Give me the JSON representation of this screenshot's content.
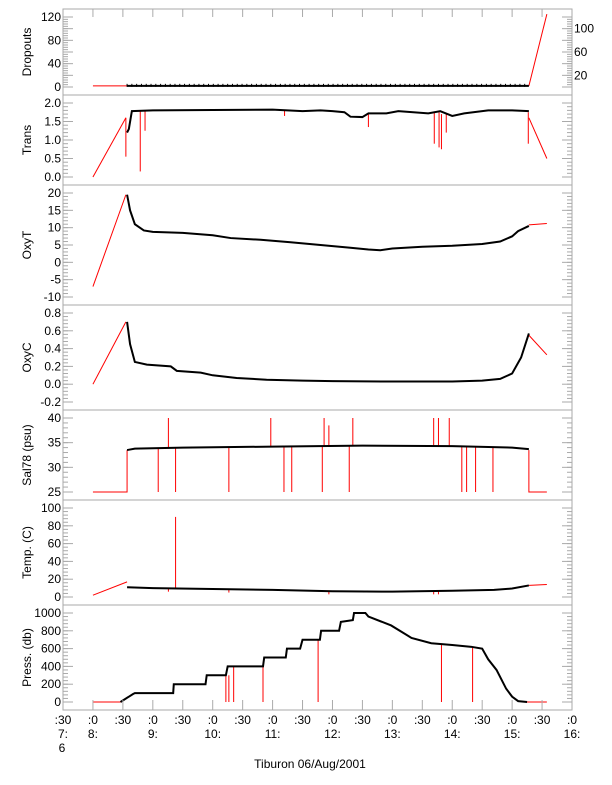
{
  "chart_data": {
    "type": "line",
    "xlabel": "Tiburon 06/Aug/2001",
    "xlim": [
      7.5,
      16.0
    ],
    "x_ticks": [
      {
        "t": 7.5,
        "label": ":30",
        "hour": "7:",
        "day": "6"
      },
      {
        "t": 8.0,
        "label": ":0",
        "hour": "8:"
      },
      {
        "t": 8.5,
        "label": ":30"
      },
      {
        "t": 9.0,
        "label": ":0",
        "hour": "9:"
      },
      {
        "t": 9.5,
        "label": ":30"
      },
      {
        "t": 10.0,
        "label": ":0",
        "hour": "10:"
      },
      {
        "t": 10.5,
        "label": ":30"
      },
      {
        "t": 11.0,
        "label": ":0",
        "hour": "11:"
      },
      {
        "t": 11.5,
        "label": ":30"
      },
      {
        "t": 12.0,
        "label": ":0",
        "hour": "12:"
      },
      {
        "t": 12.5,
        "label": ":30"
      },
      {
        "t": 13.0,
        "label": ":0",
        "hour": "13:"
      },
      {
        "t": 13.5,
        "label": ":30"
      },
      {
        "t": 14.0,
        "label": ":0",
        "hour": "14:"
      },
      {
        "t": 14.5,
        "label": ":30"
      },
      {
        "t": 15.0,
        "label": ":0",
        "hour": "15:"
      },
      {
        "t": 15.5,
        "label": ":30"
      },
      {
        "t": 16.0,
        "label": ":0",
        "hour": "16:"
      }
    ],
    "colors": {
      "data": "#000000",
      "flagged": "#ff0000",
      "axis": "#aaaaaa"
    },
    "panels": [
      {
        "ylabel": "Dropouts",
        "ylim": [
          0,
          120
        ],
        "ticks": [
          0,
          20,
          40,
          60,
          80,
          100,
          120
        ],
        "tick_labels": [
          "0",
          "20",
          "40",
          "60",
          "80",
          "100",
          "120"
        ],
        "series": [
          {
            "name": "data",
            "points": [
              [
                8.57,
                2
              ],
              [
                15.28,
                2
              ]
            ]
          }
        ],
        "flagged_lines": [
          [
            [
              8.0,
              2
            ],
            [
              8.57,
              2
            ]
          ],
          [
            [
              15.28,
              2
            ],
            [
              15.58,
              125
            ]
          ]
        ],
        "spikes": []
      },
      {
        "ylabel": "Trans",
        "ylim": [
          0,
          2
        ],
        "ticks": [
          0,
          0.5,
          1,
          1.5,
          2
        ],
        "tick_labels": [
          "0.0",
          "0.5",
          "1.0",
          "1.5",
          "2.0"
        ],
        "series": [
          {
            "name": "data",
            "points": [
              [
                8.57,
                1.2
              ],
              [
                8.6,
                1.3
              ],
              [
                8.65,
                1.78
              ],
              [
                9.0,
                1.8
              ],
              [
                10.0,
                1.81
              ],
              [
                11.0,
                1.82
              ],
              [
                11.5,
                1.78
              ],
              [
                11.8,
                1.8
              ],
              [
                12.0,
                1.78
              ],
              [
                12.2,
                1.75
              ],
              [
                12.3,
                1.63
              ],
              [
                12.5,
                1.62
              ],
              [
                12.6,
                1.72
              ],
              [
                12.9,
                1.72
              ],
              [
                13.1,
                1.78
              ],
              [
                13.6,
                1.72
              ],
              [
                13.8,
                1.78
              ],
              [
                14.0,
                1.65
              ],
              [
                14.2,
                1.72
              ],
              [
                14.6,
                1.8
              ],
              [
                15.0,
                1.8
              ],
              [
                15.28,
                1.78
              ]
            ]
          }
        ],
        "flagged_lines": [
          [
            [
              8.0,
              0
            ],
            [
              8.55,
              1.6
            ]
          ],
          [
            [
              15.28,
              1.6
            ],
            [
              15.58,
              0.5
            ]
          ]
        ],
        "spikes": [
          [
            8.55,
            1.6,
            0.55
          ],
          [
            8.79,
            1.8,
            0.15
          ],
          [
            8.87,
            1.8,
            1.25
          ],
          [
            11.2,
            1.8,
            1.65
          ],
          [
            12.6,
            1.7,
            1.35
          ],
          [
            13.7,
            1.75,
            0.9
          ],
          [
            13.78,
            1.75,
            0.8
          ],
          [
            13.82,
            1.7,
            0.75
          ],
          [
            13.9,
            1.7,
            1.2
          ],
          [
            15.27,
            1.75,
            0.9
          ]
        ]
      },
      {
        "ylabel": "OxyT",
        "ylim": [
          -10,
          20
        ],
        "ticks": [
          -10,
          -5,
          0,
          5,
          10,
          15,
          20
        ],
        "tick_labels": [
          "-10",
          "-5",
          "0",
          "5",
          "10",
          "15",
          "20"
        ],
        "series": [
          {
            "name": "data",
            "points": [
              [
                8.57,
                19.5
              ],
              [
                8.62,
                15
              ],
              [
                8.7,
                11
              ],
              [
                8.85,
                9.2
              ],
              [
                9.0,
                8.8
              ],
              [
                9.5,
                8.5
              ],
              [
                10.0,
                7.8
              ],
              [
                10.3,
                7
              ],
              [
                10.8,
                6.5
              ],
              [
                11.3,
                5.8
              ],
              [
                11.8,
                5
              ],
              [
                12.3,
                4.2
              ],
              [
                12.6,
                3.7
              ],
              [
                12.8,
                3.5
              ],
              [
                13.0,
                4
              ],
              [
                13.5,
                4.5
              ],
              [
                14.0,
                4.8
              ],
              [
                14.5,
                5.3
              ],
              [
                14.8,
                6
              ],
              [
                15.0,
                7.5
              ],
              [
                15.1,
                9
              ],
              [
                15.28,
                10.5
              ]
            ]
          }
        ],
        "flagged_lines": [
          [
            [
              8.0,
              -7
            ],
            [
              8.55,
              19.5
            ]
          ],
          [
            [
              15.28,
              10.8
            ],
            [
              15.58,
              11.2
            ]
          ]
        ],
        "spikes": []
      },
      {
        "ylabel": "OxyC",
        "ylim": [
          -0.2,
          0.8
        ],
        "ticks": [
          -0.2,
          0,
          0.2,
          0.4,
          0.6,
          0.8
        ],
        "tick_labels": [
          "-0.2",
          "0.0",
          "0.2",
          "0.4",
          "0.6",
          "0.8"
        ],
        "series": [
          {
            "name": "data",
            "points": [
              [
                8.57,
                0.7
              ],
              [
                8.62,
                0.45
              ],
              [
                8.7,
                0.25
              ],
              [
                8.9,
                0.22
              ],
              [
                9.3,
                0.2
              ],
              [
                9.4,
                0.15
              ],
              [
                9.8,
                0.13
              ],
              [
                10.0,
                0.1
              ],
              [
                10.4,
                0.07
              ],
              [
                10.9,
                0.05
              ],
              [
                11.5,
                0.04
              ],
              [
                12.0,
                0.035
              ],
              [
                13.0,
                0.03
              ],
              [
                14.0,
                0.03
              ],
              [
                14.5,
                0.04
              ],
              [
                14.8,
                0.06
              ],
              [
                15.0,
                0.12
              ],
              [
                15.15,
                0.3
              ],
              [
                15.28,
                0.57
              ]
            ]
          }
        ],
        "flagged_lines": [
          [
            [
              8.0,
              0
            ],
            [
              8.55,
              0.7
            ]
          ],
          [
            [
              15.28,
              0.55
            ],
            [
              15.58,
              0.33
            ]
          ]
        ],
        "spikes": []
      },
      {
        "ylabel": "Sal78 (psu)",
        "ylim": [
          25,
          40
        ],
        "ticks": [
          25,
          30,
          35,
          40
        ],
        "tick_labels": [
          "25",
          "30",
          "35",
          "40"
        ],
        "series": [
          {
            "name": "data",
            "points": [
              [
                8.57,
                33.5
              ],
              [
                8.7,
                33.8
              ],
              [
                9.5,
                34
              ],
              [
                11.0,
                34.2
              ],
              [
                12.5,
                34.4
              ],
              [
                14.0,
                34.3
              ],
              [
                15.0,
                34
              ],
              [
                15.28,
                33.7
              ]
            ]
          }
        ],
        "flagged_lines": [
          [
            [
              8.0,
              25
            ],
            [
              8.57,
              25
            ],
            [
              8.57,
              33.5
            ]
          ],
          [
            [
              15.28,
              33.5
            ],
            [
              15.28,
              25
            ],
            [
              15.58,
              25
            ]
          ]
        ],
        "spikes": [
          [
            9.09,
            33.8,
            25
          ],
          [
            9.38,
            34,
            25
          ],
          [
            10.27,
            34.1,
            25
          ],
          [
            11.19,
            34.2,
            25
          ],
          [
            11.32,
            34.2,
            25
          ],
          [
            11.83,
            34.3,
            25
          ],
          [
            12.28,
            34.4,
            25
          ],
          [
            14.16,
            34.3,
            25
          ],
          [
            14.24,
            34.3,
            25
          ],
          [
            14.39,
            34.3,
            25
          ],
          [
            14.68,
            34.2,
            25
          ],
          [
            9.26,
            34,
            40
          ],
          [
            10.97,
            34.2,
            40
          ],
          [
            11.86,
            34.3,
            40
          ],
          [
            11.94,
            34.3,
            38.5
          ],
          [
            12.34,
            34.4,
            40
          ],
          [
            13.69,
            34.3,
            40
          ],
          [
            13.77,
            34.3,
            40
          ],
          [
            13.95,
            34.3,
            40
          ]
        ]
      },
      {
        "ylabel": "Temp. (C)",
        "ylim": [
          0,
          100
        ],
        "ticks": [
          0,
          20,
          40,
          60,
          80,
          100
        ],
        "tick_labels": [
          "0",
          "20",
          "40",
          "60",
          "80",
          "100"
        ],
        "series": [
          {
            "name": "data",
            "points": [
              [
                8.57,
                11
              ],
              [
                9.0,
                10
              ],
              [
                10.0,
                9
              ],
              [
                11.0,
                8
              ],
              [
                12.0,
                6.5
              ],
              [
                13.0,
                6
              ],
              [
                14.0,
                7
              ],
              [
                14.7,
                8
              ],
              [
                15.0,
                9.5
              ],
              [
                15.28,
                13
              ]
            ]
          }
        ],
        "flagged_lines": [
          [
            [
              8.0,
              2
            ],
            [
              8.57,
              17
            ]
          ],
          [
            [
              15.28,
              13
            ],
            [
              15.58,
              14
            ]
          ]
        ],
        "spikes": [
          [
            9.38,
            10,
            90
          ],
          [
            9.26,
            10,
            6
          ],
          [
            10.27,
            9,
            5
          ],
          [
            11.94,
            7,
            3
          ],
          [
            13.69,
            6.5,
            3
          ],
          [
            13.77,
            6.5,
            3
          ]
        ]
      },
      {
        "ylabel": "Press. (db)",
        "ylim": [
          0,
          1000
        ],
        "ticks": [
          0,
          200,
          400,
          600,
          800,
          1000
        ],
        "tick_labels": [
          "0",
          "200",
          "400",
          "600",
          "800",
          "1000"
        ],
        "series": [
          {
            "name": "data",
            "points": [
              [
                8.46,
                0
              ],
              [
                8.6,
                60
              ],
              [
                8.67,
                90
              ],
              [
                8.7,
                100
              ],
              [
                9.34,
                100
              ],
              [
                9.35,
                200
              ],
              [
                9.88,
                200
              ],
              [
                9.9,
                300
              ],
              [
                10.22,
                300
              ],
              [
                10.25,
                400
              ],
              [
                10.84,
                400
              ],
              [
                10.86,
                500
              ],
              [
                11.22,
                500
              ],
              [
                11.24,
                600
              ],
              [
                11.46,
                600
              ],
              [
                11.5,
                700
              ],
              [
                11.79,
                700
              ],
              [
                11.81,
                800
              ],
              [
                12.11,
                800
              ],
              [
                12.14,
                900
              ],
              [
                12.34,
                920
              ],
              [
                12.36,
                1000
              ],
              [
                12.55,
                1000
              ],
              [
                12.6,
                960
              ],
              [
                12.98,
                860
              ],
              [
                13.32,
                720
              ],
              [
                13.65,
                660
              ],
              [
                14.0,
                640
              ],
              [
                14.32,
                620
              ],
              [
                14.5,
                600
              ],
              [
                14.6,
                480
              ],
              [
                14.74,
                360
              ],
              [
                14.9,
                150
              ],
              [
                15.0,
                60
              ],
              [
                15.1,
                10
              ],
              [
                15.25,
                0
              ]
            ]
          }
        ],
        "flagged_lines": [
          [
            [
              8.0,
              0
            ],
            [
              8.46,
              0
            ]
          ],
          [
            [
              15.25,
              0
            ],
            [
              15.58,
              0
            ]
          ]
        ],
        "spikes": [
          [
            10.27,
            300,
            0
          ],
          [
            10.84,
            400,
            0
          ],
          [
            11.76,
            700,
            0
          ],
          [
            14.34,
            620,
            0
          ],
          [
            10.22,
            300,
            0
          ],
          [
            10.35,
            400,
            0
          ],
          [
            13.82,
            650,
            0
          ]
        ]
      }
    ]
  }
}
